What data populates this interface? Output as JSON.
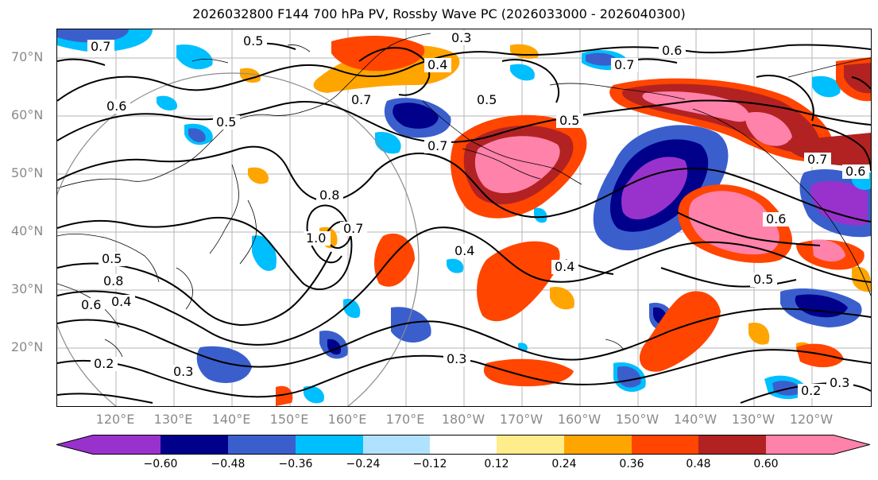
{
  "title": "2026032800 F144 700 hPa PV, Rossby Wave PC (2026033000 - 2026040300)",
  "lat_labels": [
    "70°N",
    "60°N",
    "50°N",
    "40°N",
    "30°N",
    "20°N"
  ],
  "lon_labels": [
    "120°E",
    "130°E",
    "140°E",
    "150°E",
    "160°E",
    "170°E",
    "180°W",
    "170°W",
    "160°W",
    "150°W",
    "140°W",
    "130°W",
    "120°W"
  ],
  "contour_labels": [
    "0.7",
    "0.5",
    "0.3",
    "0.4",
    "0.6",
    "0.7",
    "0.5",
    "0.6",
    "0.7",
    "0.5",
    "0.7",
    "0.5",
    "0.8",
    "1.0",
    "0.7",
    "0.4",
    "0.4",
    "0.6",
    "0.5",
    "0.3",
    "0.2",
    "0.3",
    "0.2",
    "0.3",
    "0.6",
    "0.4",
    "0.8",
    "0.5",
    "0.7",
    "0.6"
  ],
  "colorbar": {
    "ticks": [
      "−0.60",
      "−0.48",
      "−0.36",
      "−0.24",
      "−0.12",
      "0.12",
      "0.24",
      "0.36",
      "0.48",
      "0.60"
    ],
    "levels": [
      -0.6,
      -0.48,
      -0.36,
      -0.24,
      -0.12,
      0.12,
      0.24,
      0.36,
      0.48,
      0.6
    ],
    "colors": [
      "#9932cc",
      "#00008b",
      "#3a5fcd",
      "#00bfff",
      "#b0e2ff",
      "#ffffff",
      "#ffec8b",
      "#ffa500",
      "#ff4500",
      "#b22222",
      "#ff82ab"
    ]
  }
}
